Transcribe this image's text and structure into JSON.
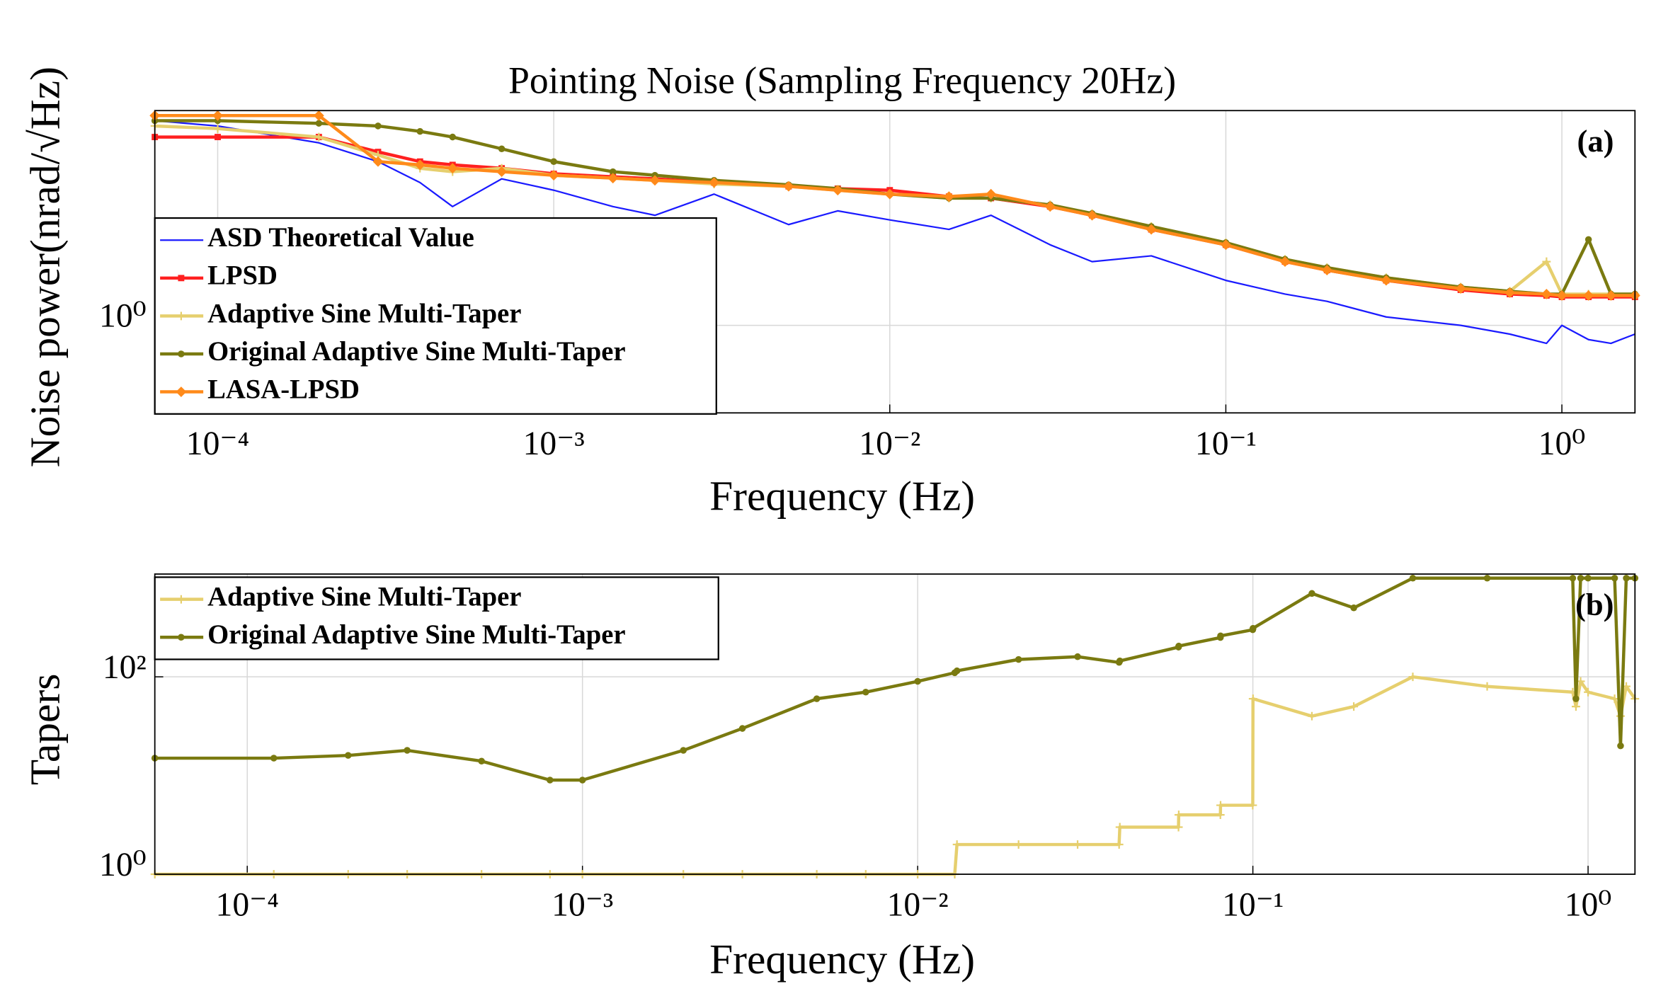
{
  "chart_data": [
    {
      "type": "line",
      "title": "Pointing Noise (Sampling Frequency 20Hz)",
      "x_label": "Frequency (Hz)",
      "y_label": "Noise power(nrad/√Hz)",
      "annotation": "(a)",
      "xscale": "log",
      "yscale": "log",
      "grid": true,
      "legend": "upper left",
      "xlim": [
        6.5e-05,
        1.65
      ],
      "ylim": [
        0.6,
        3.5
      ],
      "xticks": [
        {
          "value": 0.0001,
          "label": "10⁻⁴"
        },
        {
          "value": 0.001,
          "label": "10⁻³"
        },
        {
          "value": 0.01,
          "label": "10⁻²"
        },
        {
          "value": 0.1,
          "label": "10⁻¹"
        },
        {
          "value": 1,
          "label": "10⁰"
        }
      ],
      "yticks": [
        {
          "value": 1,
          "label": "10⁰"
        }
      ],
      "x": [
        6.5e-05,
        0.0001,
        0.0002,
        0.0003,
        0.0004,
        0.0005,
        0.0007,
        0.001,
        0.0015,
        0.002,
        0.003,
        0.005,
        0.007,
        0.01,
        0.015,
        0.02,
        0.03,
        0.04,
        0.06,
        0.1,
        0.15,
        0.2,
        0.3,
        0.5,
        0.7,
        0.9,
        1.0,
        1.2,
        1.4,
        1.65
      ],
      "series": [
        {
          "name": "ASD Theoretical Value",
          "color": "#1a1aff",
          "marker": "none",
          "values": [
            3.3,
            3.2,
            2.9,
            2.6,
            2.3,
            2.0,
            2.35,
            2.2,
            2.0,
            1.9,
            2.15,
            1.8,
            1.95,
            1.85,
            1.75,
            1.9,
            1.6,
            1.45,
            1.5,
            1.3,
            1.2,
            1.15,
            1.05,
            1.0,
            0.95,
            0.9,
            1.0,
            0.92,
            0.9,
            0.95
          ]
        },
        {
          "name": "LPSD",
          "color": "#ff2020",
          "marker": "square",
          "values": [
            3.0,
            3.0,
            3.0,
            2.75,
            2.6,
            2.55,
            2.5,
            2.42,
            2.38,
            2.35,
            2.3,
            2.25,
            2.22,
            2.2,
            2.12,
            2.1,
            2.0,
            1.9,
            1.75,
            1.6,
            1.45,
            1.38,
            1.3,
            1.23,
            1.2,
            1.19,
            1.18,
            1.18,
            1.18,
            1.18
          ]
        },
        {
          "name": "Adaptive Sine Multi-Taper",
          "color": "#e6cf6e",
          "marker": "plus",
          "values": [
            3.2,
            3.15,
            3.0,
            2.7,
            2.5,
            2.45,
            2.5,
            2.4,
            2.36,
            2.33,
            2.28,
            2.25,
            2.2,
            2.15,
            2.1,
            2.1,
            2.02,
            1.92,
            1.78,
            1.62,
            1.47,
            1.4,
            1.32,
            1.25,
            1.22,
            1.45,
            1.2,
            1.2,
            1.2,
            1.2
          ]
        },
        {
          "name": "Original Adaptive Sine Multi-Taper",
          "color": "#7a7a10",
          "marker": "circle",
          "values": [
            3.3,
            3.3,
            3.25,
            3.2,
            3.1,
            3.0,
            2.8,
            2.6,
            2.45,
            2.4,
            2.33,
            2.27,
            2.22,
            2.15,
            2.1,
            2.1,
            2.02,
            1.92,
            1.78,
            1.62,
            1.47,
            1.4,
            1.32,
            1.25,
            1.22,
            1.2,
            1.2,
            1.65,
            1.2,
            1.2
          ]
        },
        {
          "name": "LASA-LPSD",
          "color": "#ff8a1a",
          "marker": "diamond",
          "values": [
            3.4,
            3.4,
            3.4,
            2.6,
            2.55,
            2.5,
            2.45,
            2.4,
            2.36,
            2.33,
            2.3,
            2.25,
            2.2,
            2.15,
            2.12,
            2.15,
            2.0,
            1.9,
            1.75,
            1.6,
            1.45,
            1.38,
            1.3,
            1.24,
            1.21,
            1.2,
            1.19,
            1.19,
            1.19,
            1.19
          ]
        }
      ]
    },
    {
      "type": "line",
      "x_label": "Frequency (Hz)",
      "y_label": "Tapers",
      "annotation": "(b)",
      "xscale": "log",
      "yscale": "log",
      "grid": true,
      "legend": "upper left",
      "xlim": [
        5.3e-05,
        1.38
      ],
      "ylim": [
        1,
        1100
      ],
      "xticks": [
        {
          "value": 0.0001,
          "label": "10⁻⁴"
        },
        {
          "value": 0.001,
          "label": "10⁻³"
        },
        {
          "value": 0.01,
          "label": "10⁻²"
        },
        {
          "value": 0.1,
          "label": "10⁻¹"
        },
        {
          "value": 1,
          "label": "10⁰"
        }
      ],
      "yticks": [
        {
          "value": 1,
          "label": "10⁰"
        },
        {
          "value": 100,
          "label": "10²"
        }
      ],
      "x": [
        5.3e-05,
        0.00012,
        0.0002,
        0.0003,
        0.0005,
        0.0008,
        0.001,
        0.002,
        0.003,
        0.005,
        0.007,
        0.01,
        0.0129,
        0.0131,
        0.02,
        0.03,
        0.0399,
        0.0401,
        0.06,
        0.0601,
        0.08,
        0.0801,
        0.0999,
        0.1001,
        0.15,
        0.2,
        0.3,
        0.5,
        0.9,
        0.92,
        0.95,
        1.0,
        1.2,
        1.25,
        1.3,
        1.38
      ],
      "series": [
        {
          "name": "Adaptive Sine Multi-Taper",
          "color": "#e6cf6e",
          "marker": "plus",
          "values": [
            1,
            1,
            1,
            1,
            1,
            1,
            1,
            1,
            1,
            1,
            1,
            1,
            1,
            2,
            2,
            2,
            2,
            3,
            3,
            4,
            4,
            5,
            5,
            60,
            40,
            50,
            100,
            80,
            70,
            50,
            90,
            70,
            60,
            40,
            80,
            60
          ]
        },
        {
          "name": "Original Adaptive Sine Multi-Taper",
          "color": "#7a7a10",
          "marker": "circle",
          "values": [
            15,
            15,
            16,
            18,
            14,
            9,
            9,
            18,
            30,
            60,
            70,
            90,
            110,
            115,
            150,
            160,
            140,
            145,
            200,
            205,
            250,
            260,
            300,
            310,
            700,
            500,
            1000,
            1000,
            1000,
            60,
            1000,
            1000,
            1000,
            20,
            1000,
            1000
          ]
        }
      ]
    }
  ]
}
